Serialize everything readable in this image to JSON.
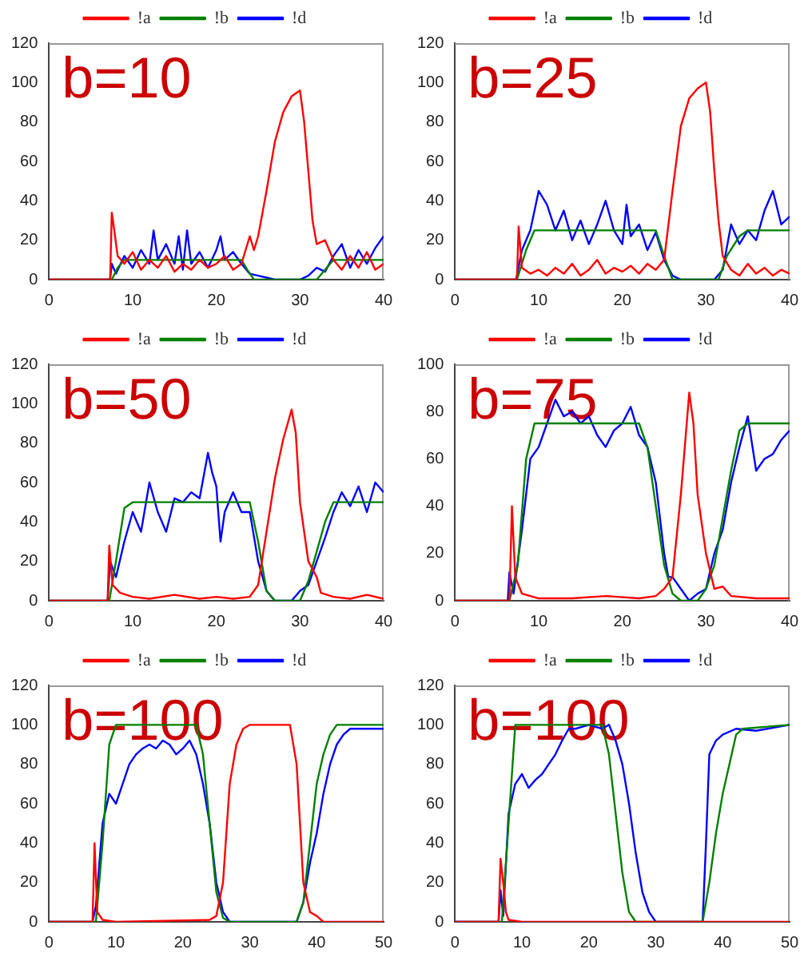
{
  "chart_data": [
    {
      "type": "line",
      "annotations": [
        "b=10"
      ],
      "xlim": [
        0,
        40
      ],
      "ylim": [
        0,
        120
      ],
      "xticks": [
        0,
        10,
        20,
        30,
        40
      ],
      "yticks": [
        0,
        20,
        40,
        60,
        80,
        100,
        120
      ],
      "legend": "top",
      "grid": false,
      "marker": "none",
      "series": [
        {
          "name": "!a",
          "color": "#ff0000",
          "x": [
            0,
            7.3,
            7.5,
            7.8,
            8.2,
            9,
            10,
            11,
            12,
            13,
            14,
            15,
            16,
            17,
            18,
            19,
            20,
            21,
            22,
            23,
            24,
            24.5,
            25,
            26,
            27,
            28,
            29,
            30,
            30.5,
            31,
            31.5,
            32,
            33,
            34,
            35,
            36,
            37,
            38,
            39,
            40
          ],
          "values": [
            0,
            0,
            34,
            25,
            12,
            8,
            14,
            5,
            10,
            6,
            12,
            4,
            8,
            5,
            10,
            6,
            8,
            12,
            5,
            8,
            22,
            15,
            22,
            45,
            70,
            85,
            93,
            96,
            80,
            55,
            30,
            18,
            20,
            10,
            5,
            12,
            6,
            14,
            5,
            8
          ]
        },
        {
          "name": "!b",
          "color": "#008000",
          "x": [
            0,
            7.5,
            8.2,
            9,
            23,
            23.7,
            24.5,
            32,
            33,
            34,
            40
          ],
          "values": [
            0,
            0,
            6,
            10,
            10,
            5,
            0,
            0,
            5,
            10,
            10
          ]
        },
        {
          "name": "!d",
          "color": "#0000ff",
          "x": [
            0,
            7.3,
            7.5,
            8,
            9,
            10,
            11,
            12,
            12.5,
            13,
            14,
            15,
            15.5,
            16,
            16.5,
            17,
            18,
            19,
            20,
            20.5,
            21,
            22,
            23,
            24,
            25,
            26,
            27,
            30,
            31,
            32,
            33,
            34,
            35,
            36,
            37,
            38,
            39,
            40
          ],
          "values": [
            0,
            0,
            8,
            3,
            12,
            6,
            15,
            8,
            25,
            10,
            18,
            8,
            22,
            5,
            25,
            8,
            14,
            6,
            15,
            22,
            10,
            14,
            8,
            3,
            2,
            1,
            0,
            0,
            2,
            6,
            4,
            12,
            18,
            6,
            15,
            8,
            16,
            22
          ]
        }
      ]
    },
    {
      "type": "line",
      "annotations": [
        "b=25"
      ],
      "xlim": [
        0,
        40
      ],
      "ylim": [
        0,
        120
      ],
      "xticks": [
        0,
        10,
        20,
        30,
        40
      ],
      "yticks": [
        0,
        20,
        40,
        60,
        80,
        100,
        120
      ],
      "legend": "top",
      "grid": false,
      "marker": "none",
      "series": [
        {
          "name": "!a",
          "color": "#ff0000",
          "x": [
            0,
            7.4,
            7.6,
            8,
            9,
            10,
            11,
            12,
            13,
            14,
            15,
            16,
            17,
            18,
            19,
            20,
            21,
            22,
            23,
            24,
            25,
            26,
            27,
            28,
            29,
            30,
            30.5,
            31,
            31.5,
            32,
            33,
            34,
            35,
            36,
            37,
            38,
            39,
            40
          ],
          "values": [
            0,
            0,
            27,
            6,
            3,
            5,
            2,
            6,
            3,
            8,
            2,
            5,
            10,
            3,
            6,
            4,
            7,
            3,
            8,
            5,
            10,
            45,
            78,
            92,
            97,
            100,
            85,
            55,
            30,
            12,
            5,
            2,
            8,
            3,
            6,
            2,
            5,
            3
          ]
        },
        {
          "name": "!b",
          "color": "#008000",
          "x": [
            0,
            7.4,
            8.5,
            9.5,
            24,
            25,
            26,
            31.5,
            32.5,
            34,
            35,
            40
          ],
          "values": [
            0,
            0,
            15,
            25,
            25,
            12,
            0,
            0,
            12,
            22,
            25,
            25
          ]
        },
        {
          "name": "!d",
          "color": "#0000ff",
          "x": [
            0,
            7.3,
            8,
            9,
            10,
            11,
            12,
            13,
            14,
            15,
            16,
            17,
            18,
            19,
            20,
            20.5,
            21,
            22,
            23,
            24,
            25,
            26,
            27,
            31,
            32,
            33,
            34,
            35,
            36,
            37,
            38,
            39,
            40
          ],
          "values": [
            0,
            0,
            15,
            25,
            45,
            38,
            25,
            35,
            20,
            30,
            18,
            28,
            40,
            25,
            18,
            38,
            22,
            28,
            15,
            24,
            10,
            2,
            0,
            0,
            5,
            28,
            18,
            25,
            20,
            35,
            45,
            28,
            32
          ]
        }
      ]
    },
    {
      "type": "line",
      "annotations": [
        "b=50"
      ],
      "xlim": [
        0,
        40
      ],
      "ylim": [
        0,
        120
      ],
      "xticks": [
        0,
        10,
        20,
        30,
        40
      ],
      "yticks": [
        0,
        20,
        40,
        60,
        80,
        100,
        120
      ],
      "legend": "top",
      "grid": false,
      "marker": "none",
      "series": [
        {
          "name": "!a",
          "color": "#ff0000",
          "x": [
            0,
            7,
            7.2,
            7.6,
            8.5,
            10,
            12,
            15,
            18,
            20,
            22,
            24,
            25,
            26,
            27,
            28,
            29,
            29.5,
            30,
            31,
            32,
            32.5,
            34,
            36,
            38,
            40
          ],
          "values": [
            0,
            0,
            28,
            8,
            4,
            2,
            1,
            3,
            1,
            2,
            1,
            2,
            8,
            35,
            62,
            82,
            97,
            85,
            50,
            20,
            12,
            4,
            2,
            1,
            3,
            1
          ]
        },
        {
          "name": "!b",
          "color": "#008000",
          "x": [
            0,
            7.2,
            8,
            9,
            10,
            24,
            25,
            26,
            27,
            30,
            31,
            32,
            33,
            34,
            40
          ],
          "values": [
            0,
            0,
            20,
            47,
            50,
            50,
            30,
            5,
            0,
            0,
            10,
            25,
            40,
            50,
            50
          ]
        },
        {
          "name": "!d",
          "color": "#0000ff",
          "x": [
            0,
            7,
            7.3,
            8,
            9,
            10,
            11,
            12,
            13,
            14,
            15,
            16,
            17,
            18,
            19,
            19.5,
            20,
            20.5,
            21,
            22,
            23,
            24,
            25,
            26,
            27,
            29,
            30,
            31,
            32,
            33,
            34,
            35,
            36,
            37,
            38,
            39,
            40
          ],
          "values": [
            0,
            0,
            20,
            12,
            30,
            45,
            35,
            60,
            45,
            35,
            52,
            50,
            55,
            52,
            75,
            65,
            58,
            30,
            45,
            55,
            45,
            45,
            20,
            5,
            0,
            0,
            5,
            8,
            20,
            32,
            45,
            55,
            48,
            58,
            45,
            60,
            55
          ]
        }
      ]
    },
    {
      "type": "line",
      "annotations": [
        "b=75"
      ],
      "xlim": [
        0,
        40
      ],
      "ylim": [
        0,
        100
      ],
      "xticks": [
        0,
        10,
        20,
        30,
        40
      ],
      "yticks": [
        0,
        20,
        40,
        60,
        80,
        100
      ],
      "legend": "top",
      "grid": false,
      "marker": "none",
      "series": [
        {
          "name": "!a",
          "color": "#ff0000",
          "x": [
            0,
            6.5,
            6.8,
            7.2,
            8,
            10,
            14,
            18,
            22,
            24,
            25,
            26,
            27,
            28,
            28.5,
            29,
            30,
            31,
            32,
            33,
            36,
            40
          ],
          "values": [
            0,
            0,
            40,
            10,
            3,
            1,
            1,
            2,
            1,
            2,
            5,
            10,
            45,
            88,
            75,
            45,
            20,
            5,
            6,
            2,
            1,
            1
          ]
        },
        {
          "name": "!b",
          "color": "#008000",
          "x": [
            0,
            6.5,
            7.5,
            8.5,
            9.5,
            22,
            23,
            24,
            25,
            26,
            27,
            29,
            30,
            31,
            32,
            33,
            34,
            35,
            40
          ],
          "values": [
            0,
            0,
            15,
            60,
            75,
            75,
            65,
            40,
            15,
            3,
            0,
            0,
            5,
            15,
            35,
            55,
            72,
            75,
            75
          ]
        },
        {
          "name": "!d",
          "color": "#0000ff",
          "x": [
            0,
            6.3,
            6.5,
            7,
            8,
            9,
            10,
            11,
            12,
            13,
            14,
            15,
            16,
            17,
            18,
            19,
            20,
            21,
            22,
            23,
            24,
            25,
            25.5,
            26,
            27,
            28,
            29,
            30,
            31,
            32,
            33,
            34,
            35,
            36,
            37,
            38,
            39,
            40
          ],
          "values": [
            0,
            0,
            12,
            3,
            30,
            60,
            65,
            75,
            85,
            78,
            80,
            75,
            78,
            70,
            65,
            72,
            75,
            82,
            70,
            65,
            50,
            20,
            10,
            10,
            5,
            0,
            3,
            5,
            20,
            30,
            50,
            65,
            78,
            55,
            60,
            62,
            68,
            72
          ]
        }
      ]
    },
    {
      "type": "line",
      "annotations": [
        "b=100"
      ],
      "xlim": [
        0,
        50
      ],
      "ylim": [
        0,
        120
      ],
      "xticks": [
        0,
        10,
        20,
        30,
        40,
        50
      ],
      "yticks": [
        0,
        20,
        40,
        60,
        80,
        100,
        120
      ],
      "legend": "top",
      "grid": false,
      "marker": "none",
      "series": [
        {
          "name": "!a",
          "color": "#ff0000",
          "x": [
            0,
            6.5,
            6.8,
            7.2,
            8,
            10,
            24,
            25,
            26,
            27,
            28,
            29,
            30,
            36,
            37,
            38,
            39,
            40,
            41,
            50
          ],
          "values": [
            0,
            0,
            40,
            5,
            1,
            0,
            1,
            3,
            20,
            70,
            90,
            98,
            100,
            100,
            80,
            20,
            5,
            3,
            0,
            0
          ]
        },
        {
          "name": "!b",
          "color": "#008000",
          "x": [
            0,
            7,
            8,
            9,
            10,
            22,
            23,
            24,
            25,
            26,
            27,
            37,
            38,
            39,
            40,
            41,
            42,
            43,
            50
          ],
          "values": [
            0,
            0,
            40,
            90,
            100,
            100,
            85,
            50,
            15,
            2,
            0,
            0,
            10,
            40,
            70,
            85,
            95,
            100,
            100
          ]
        },
        {
          "name": "!d",
          "color": "#0000ff",
          "x": [
            0,
            6.5,
            7,
            8,
            9,
            10,
            11,
            12,
            13,
            14,
            15,
            16,
            17,
            18,
            19,
            20,
            21,
            22,
            23,
            24,
            25,
            26,
            27,
            37,
            38,
            39,
            40,
            41,
            42,
            43,
            44,
            45,
            50
          ],
          "values": [
            0,
            0,
            8,
            50,
            65,
            60,
            70,
            80,
            85,
            88,
            90,
            88,
            92,
            90,
            85,
            88,
            92,
            85,
            70,
            50,
            20,
            5,
            0,
            0,
            10,
            30,
            45,
            65,
            80,
            90,
            95,
            98,
            98
          ]
        }
      ]
    },
    {
      "type": "line",
      "annotations": [
        "b=100"
      ],
      "xlim": [
        0,
        50
      ],
      "ylim": [
        0,
        120
      ],
      "xticks": [
        0,
        10,
        20,
        30,
        40,
        50
      ],
      "yticks": [
        0,
        20,
        40,
        60,
        80,
        100,
        120
      ],
      "legend": "top",
      "grid": false,
      "marker": "none",
      "series": [
        {
          "name": "!a",
          "color": "#ff0000",
          "x": [
            0,
            6.5,
            6.8,
            7.2,
            7.6,
            8,
            10,
            50
          ],
          "values": [
            0,
            0,
            32,
            20,
            5,
            1,
            0,
            0
          ]
        },
        {
          "name": "!b",
          "color": "#008000",
          "x": [
            0,
            7,
            8,
            9,
            22,
            23,
            24,
            25,
            26,
            27,
            37,
            38,
            39,
            40,
            41,
            42,
            43,
            50
          ],
          "values": [
            0,
            0,
            50,
            100,
            100,
            85,
            55,
            25,
            5,
            0,
            0,
            20,
            45,
            65,
            80,
            95,
            98,
            100
          ]
        },
        {
          "name": "!d",
          "color": "#0000ff",
          "x": [
            0,
            6.5,
            6.8,
            7.2,
            8,
            9,
            10,
            11,
            12,
            13,
            14,
            15,
            16,
            17,
            18,
            20,
            22,
            23,
            24,
            25,
            26,
            27,
            28,
            29,
            30,
            37,
            37.5,
            38,
            39,
            40,
            42,
            45,
            50
          ],
          "values": [
            0,
            0,
            16,
            3,
            55,
            70,
            75,
            68,
            72,
            75,
            80,
            85,
            92,
            98,
            98,
            100,
            98,
            100,
            92,
            80,
            60,
            35,
            15,
            5,
            0,
            0,
            40,
            85,
            92,
            95,
            98,
            97,
            100
          ]
        }
      ]
    }
  ]
}
